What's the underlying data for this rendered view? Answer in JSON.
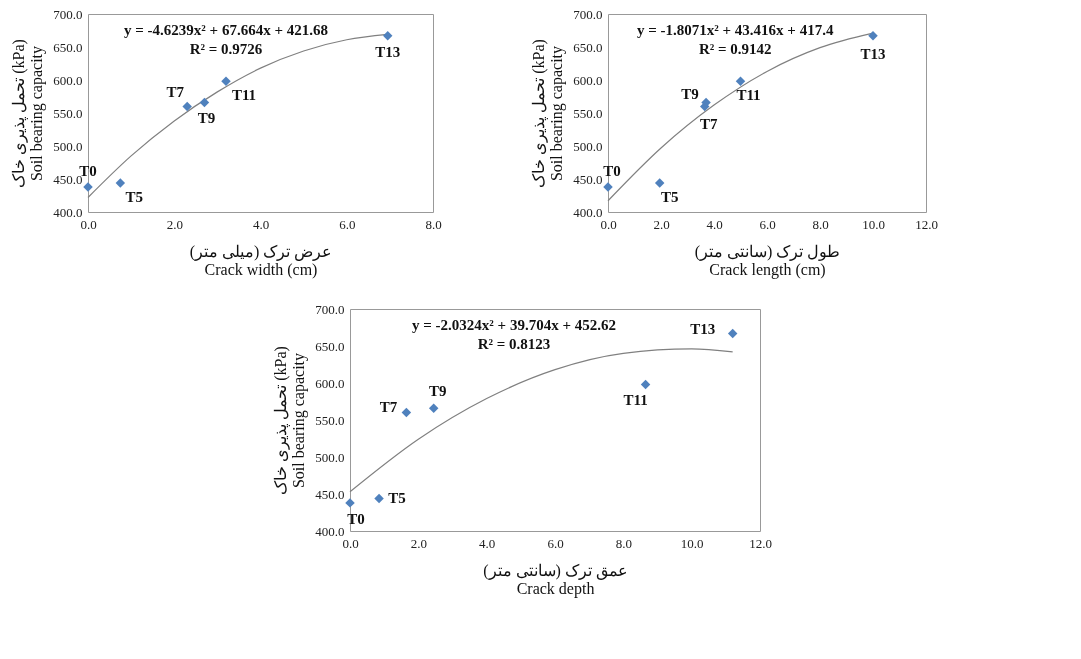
{
  "chart_data": [
    {
      "type": "scatter",
      "xlabel": [
        "عرض ترک (میلی متر)",
        "Crack width (cm)"
      ],
      "ylabel": [
        "تحمل پذیری خاک (kPa)",
        "Soil bearing capacity"
      ],
      "marker": "diamond",
      "grid": false,
      "line_style": "solid",
      "xlim": [
        0,
        8
      ],
      "xticks": [
        {
          "value": 0,
          "label": "0.0"
        },
        {
          "value": 2,
          "label": "2.0"
        },
        {
          "value": 4,
          "label": "4.0"
        },
        {
          "value": 6,
          "label": "6.0"
        },
        {
          "value": 8,
          "label": "8.0"
        }
      ],
      "ylim": [
        400,
        700
      ],
      "yticks": [
        {
          "value": 400,
          "label": "400.0"
        },
        {
          "value": 450,
          "label": "450.0"
        },
        {
          "value": 500,
          "label": "500.0"
        },
        {
          "value": 550,
          "label": "550.0"
        },
        {
          "value": 600,
          "label": "600.0"
        },
        {
          "value": 650,
          "label": "650.0"
        },
        {
          "value": 700,
          "label": "700.0"
        }
      ],
      "series": [
        {
          "type": "scatter",
          "color": "#4f81bd",
          "x": [
            0,
            0.75,
            2.3,
            2.7,
            3.2,
            6.95
          ],
          "values": [
            438,
            444,
            560,
            566,
            598,
            667
          ]
        },
        {
          "type": "line",
          "marker": "none",
          "color": "#808080",
          "x": [
            0,
            1,
            2,
            3,
            4,
            5,
            6,
            6.95
          ],
          "values": [
            422,
            485,
            538,
            582,
            618,
            644,
            661,
            669
          ]
        }
      ],
      "annotations": [
        {
          "text": "T0",
          "x": 0,
          "y": 438
        },
        {
          "text": "T5",
          "x": 0.75,
          "y": 444
        },
        {
          "text": "T7",
          "x": 2.3,
          "y": 560
        },
        {
          "text": "T9",
          "x": 2.7,
          "y": 566
        },
        {
          "text": "T11",
          "x": 3.2,
          "y": 598
        },
        {
          "text": "T13",
          "x": 6.95,
          "y": 667
        },
        "y = -4.6239x² + 67.664x + 421.68",
        "R² = 0.9726"
      ]
    },
    {
      "type": "scatter",
      "xlabel": [
        "طول ترک (سانتی متر)",
        "Crack length (cm)"
      ],
      "ylabel": [
        "تحمل پذیری خاک (kPa)",
        "Soil bearing capacity"
      ],
      "marker": "diamond",
      "grid": false,
      "line_style": "solid",
      "xlim": [
        0,
        12
      ],
      "xticks": [
        {
          "value": 0,
          "label": "0.0"
        },
        {
          "value": 2,
          "label": "2.0"
        },
        {
          "value": 4,
          "label": "4.0"
        },
        {
          "value": 6,
          "label": "6.0"
        },
        {
          "value": 8,
          "label": "8.0"
        },
        {
          "value": 10,
          "label": "10.0"
        },
        {
          "value": 12,
          "label": "12.0"
        }
      ],
      "ylim": [
        400,
        700
      ],
      "yticks": [
        {
          "value": 400,
          "label": "400.0"
        },
        {
          "value": 450,
          "label": "450.0"
        },
        {
          "value": 500,
          "label": "500.0"
        },
        {
          "value": 550,
          "label": "550.0"
        },
        {
          "value": 600,
          "label": "600.0"
        },
        {
          "value": 650,
          "label": "650.0"
        },
        {
          "value": 700,
          "label": "700.0"
        }
      ],
      "series": [
        {
          "type": "scatter",
          "color": "#4f81bd",
          "x": [
            0,
            1.95,
            3.65,
            3.7,
            5.0,
            10.0
          ],
          "values": [
            438,
            444,
            560,
            566,
            598,
            667
          ]
        },
        {
          "type": "line",
          "marker": "none",
          "color": "#808080",
          "x": [
            0,
            2,
            4,
            6,
            8,
            10
          ],
          "values": [
            417,
            497,
            562,
            613,
            649,
            671
          ]
        }
      ],
      "annotations": [
        {
          "text": "T0",
          "x": 0,
          "y": 438
        },
        {
          "text": "T5",
          "x": 1.95,
          "y": 444
        },
        {
          "text": "T7",
          "x": 3.65,
          "y": 560
        },
        {
          "text": "T9",
          "x": 3.7,
          "y": 566
        },
        {
          "text": "T11",
          "x": 5.0,
          "y": 598
        },
        {
          "text": "T13",
          "x": 10.0,
          "y": 667
        },
        "y = -1.8071x² + 43.416x + 417.4",
        "R² = 0.9142"
      ]
    },
    {
      "type": "scatter",
      "xlabel": [
        "عمق ترک (سانتی متر)",
        "Crack depth"
      ],
      "ylabel": [
        "تحمل پذیری خاک (kPa)",
        "Soil bearing capacity"
      ],
      "marker": "diamond",
      "grid": false,
      "line_style": "solid",
      "xlim": [
        0,
        12
      ],
      "xticks": [
        {
          "value": 0,
          "label": "0.0"
        },
        {
          "value": 2,
          "label": "2.0"
        },
        {
          "value": 4,
          "label": "4.0"
        },
        {
          "value": 6,
          "label": "6.0"
        },
        {
          "value": 8,
          "label": "8.0"
        },
        {
          "value": 10,
          "label": "10.0"
        },
        {
          "value": 12,
          "label": "12.0"
        }
      ],
      "ylim": [
        400,
        700
      ],
      "yticks": [
        {
          "value": 400,
          "label": "400.0"
        },
        {
          "value": 450,
          "label": "450.0"
        },
        {
          "value": 500,
          "label": "500.0"
        },
        {
          "value": 550,
          "label": "550.0"
        },
        {
          "value": 600,
          "label": "600.0"
        },
        {
          "value": 650,
          "label": "650.0"
        },
        {
          "value": 700,
          "label": "700.0"
        }
      ],
      "series": [
        {
          "type": "scatter",
          "color": "#4f81bd",
          "x": [
            0,
            0.85,
            1.65,
            2.45,
            8.65,
            11.2
          ],
          "values": [
            438,
            444,
            560,
            566,
            598,
            667
          ]
        },
        {
          "type": "line",
          "marker": "none",
          "color": "#808080",
          "x": [
            0,
            2,
            4,
            6,
            8,
            10,
            11.2
          ],
          "values": [
            453,
            524,
            579,
            618,
            640,
            646,
            642
          ]
        }
      ],
      "annotations": [
        {
          "text": "T0",
          "x": 0,
          "y": 438
        },
        {
          "text": "T5",
          "x": 0.85,
          "y": 444
        },
        {
          "text": "T7",
          "x": 1.65,
          "y": 560
        },
        {
          "text": "T9",
          "x": 2.45,
          "y": 566
        },
        {
          "text": "T11",
          "x": 8.65,
          "y": 598
        },
        {
          "text": "T13",
          "x": 11.2,
          "y": 667
        },
        "y = -2.0324x² + 39.704x + 452.62",
        "R² = 0.8123"
      ]
    }
  ]
}
